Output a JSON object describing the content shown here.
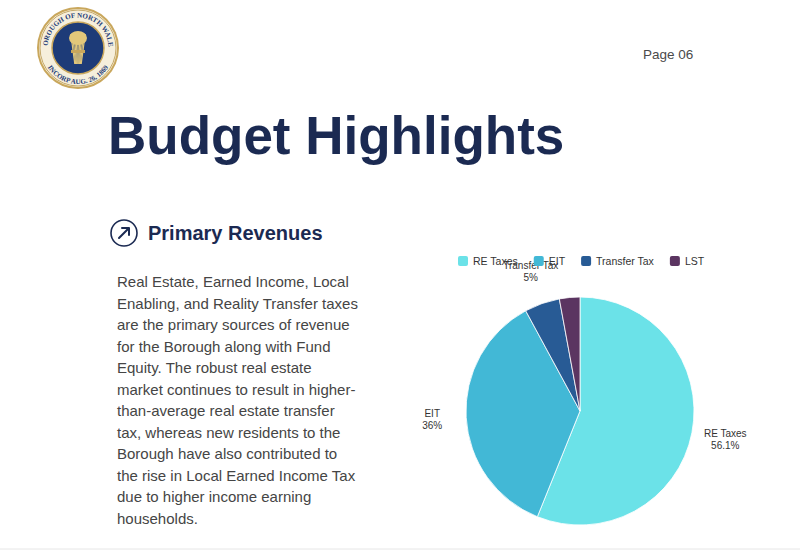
{
  "header": {
    "page": "Page 06",
    "title": "Budget Highlights",
    "seal": {
      "top_text": "BOROUGH OF NORTH WALES",
      "bottom_text": "INCORP AUG. 26, 1869"
    }
  },
  "section": {
    "heading": "Primary Revenues",
    "lines": [
      "Real Estate, Earned Income, Local",
      "Enabling, and Reality Transfer taxes",
      "are the primary sources of revenue",
      "for the Borough along with Fund",
      "Equity. The robust real estate",
      "market continues to result in higher-",
      "than-average real estate transfer",
      "tax, whereas new residents to the",
      "Borough have also contributed to",
      "the rise in Local Earned Income Tax",
      "due to higher income earning",
      "households."
    ]
  },
  "chart_data": {
    "type": "pie",
    "categories": [
      "RE Taxes",
      "EIT",
      "Transfer Tax",
      "LST"
    ],
    "values": [
      56.1,
      36,
      5,
      2.9
    ],
    "value_labels": [
      "56.1%",
      "36%",
      "5%",
      null
    ],
    "colors": [
      "#6be2e8",
      "#42b8d6",
      "#285b95",
      "#5b3561"
    ],
    "data_labels": true,
    "legend": "top"
  }
}
